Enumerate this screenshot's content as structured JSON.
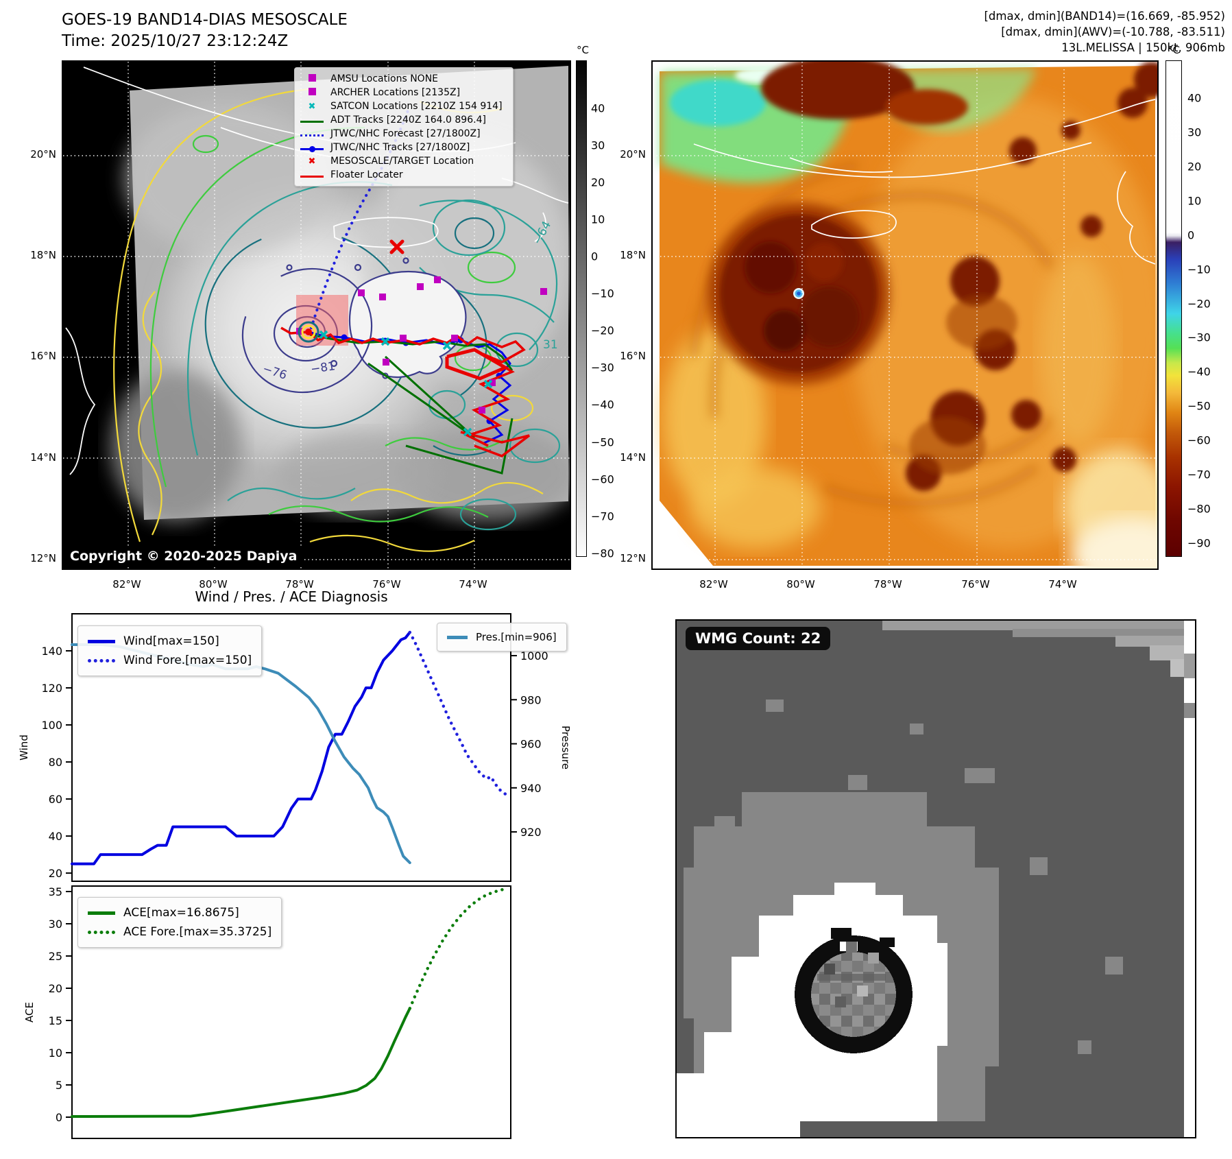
{
  "header": {
    "title": "GOES-19 BAND14-DIAS MESOSCALE",
    "time": "Time: 2025/10/27 23:12:24Z",
    "info1": "[dmax, dmin](BAND14)=(16.669, -85.952)",
    "info2": "[dmax, dmin](AWV)=(-10.788, -83.511)",
    "info3": "13L.MELISSA | 150kt, 906mb"
  },
  "left_map": {
    "copyright": "Copyright © 2020-2025 Dapiya",
    "lat_labels": [
      "20°N",
      "18°N",
      "16°N",
      "14°N",
      "12°N"
    ],
    "lon_labels": [
      "82°W",
      "80°W",
      "78°W",
      "76°W",
      "74°W"
    ],
    "contour_labels": {
      "l1": "−76",
      "l2": "−81",
      "l3": "−64",
      "l4": "31"
    },
    "colorbar": {
      "title": "°C",
      "ticks": [
        40,
        30,
        20,
        10,
        0,
        -10,
        -20,
        -30,
        -40,
        -50,
        -60,
        -70,
        -80
      ]
    },
    "legend": {
      "items": [
        {
          "label": "AMSU Locations NONE",
          "marker": "square",
          "color": "#c000c0"
        },
        {
          "label": "ARCHER Locations [2135Z]",
          "marker": "square",
          "color": "#c000c0"
        },
        {
          "label": "SATCON Locations [2210Z 154 914]",
          "marker": "x",
          "color": "#00b8b8"
        },
        {
          "label": "ADT Tracks [2240Z 164.0 896.4]",
          "marker": "line",
          "color": "#007000"
        },
        {
          "label": "JTWC/NHC Forecast [27/1800Z]",
          "marker": "dotted-line",
          "color": "#2020dd"
        },
        {
          "label": "JTWC/NHC Tracks [27/1800Z]",
          "marker": "line-dot",
          "color": "#0000e8"
        },
        {
          "label": "MESOSCALE/TARGET Location",
          "marker": "x",
          "color": "#e80000"
        },
        {
          "label": "Floater Locater",
          "marker": "line",
          "color": "#e80000"
        }
      ]
    }
  },
  "right_map": {
    "lat_labels": [
      "20°N",
      "18°N",
      "16°N",
      "14°N",
      "12°N"
    ],
    "lon_labels": [
      "82°W",
      "80°W",
      "78°W",
      "76°W",
      "74°W"
    ],
    "colorbar": {
      "title": "°C",
      "ticks": [
        40,
        30,
        20,
        10,
        0,
        -10,
        -20,
        -30,
        -40,
        -50,
        -60,
        -70,
        -80,
        -90
      ]
    }
  },
  "wmg": {
    "label": "WMG Count: 22"
  },
  "colors": {
    "wind_blue": "#0000e0",
    "forecast_blue": "#2020dd",
    "pressure_steelblue": "#3d8cb8",
    "ace_green": "#0b7d0b",
    "track_red": "#e80000",
    "track_green": "#007000",
    "marker_magenta": "#c000c0",
    "marker_cyan": "#00b8b8",
    "target_box_pink": "#f46161"
  },
  "chart_data": [
    {
      "type": "line",
      "title": "Wind / Pres. / ACE Diagnosis",
      "x_units": "normalized 0-1 (time axis, no tick labels shown)",
      "ylabel_left": "Wind",
      "ylabel_right": "Pressure",
      "y_left_ticks": [
        20,
        40,
        60,
        80,
        100,
        120,
        140
      ],
      "y_left_lim": [
        15.6,
        160
      ],
      "y_right_ticks": [
        920,
        940,
        960,
        980,
        1000
      ],
      "y_right_lim": [
        897.6,
        1019
      ],
      "series": [
        {
          "name": "Wind[max=150]",
          "axis": "left",
          "style": "solid",
          "color": "#0000e0",
          "points": [
            [
              0,
              25
            ],
            [
              0.05,
              25
            ],
            [
              0.065,
              30
            ],
            [
              0.16,
              30
            ],
            [
              0.18,
              33
            ],
            [
              0.195,
              35
            ],
            [
              0.215,
              35
            ],
            [
              0.23,
              45
            ],
            [
              0.35,
              45
            ],
            [
              0.365,
              42
            ],
            [
              0.375,
              40
            ],
            [
              0.46,
              40
            ],
            [
              0.48,
              45
            ],
            [
              0.5,
              55
            ],
            [
              0.515,
              60
            ],
            [
              0.545,
              60
            ],
            [
              0.555,
              65
            ],
            [
              0.57,
              75
            ],
            [
              0.585,
              88
            ],
            [
              0.6,
              95
            ],
            [
              0.615,
              95
            ],
            [
              0.63,
              102
            ],
            [
              0.645,
              110
            ],
            [
              0.66,
              115
            ],
            [
              0.67,
              120
            ],
            [
              0.682,
              120
            ],
            [
              0.695,
              128
            ],
            [
              0.71,
              135
            ],
            [
              0.73,
              140
            ],
            [
              0.75,
              146
            ],
            [
              0.76,
              147
            ],
            [
              0.77,
              150
            ]
          ]
        },
        {
          "name": "Wind Fore.[max=150]",
          "axis": "left",
          "style": "dotted",
          "color": "#2020dd",
          "points": [
            [
              0.77,
              150
            ],
            [
              0.785,
              143
            ],
            [
              0.8,
              135
            ],
            [
              0.815,
              127
            ],
            [
              0.83,
              119
            ],
            [
              0.845,
              111
            ],
            [
              0.86,
              103
            ],
            [
              0.875,
              96
            ],
            [
              0.89,
              89
            ],
            [
              0.9,
              84
            ],
            [
              0.915,
              79
            ],
            [
              0.93,
              74
            ],
            [
              0.945,
              71
            ],
            [
              0.955,
              72
            ],
            [
              0.965,
              68
            ],
            [
              0.975,
              65
            ],
            [
              0.985,
              63
            ],
            [
              0.995,
              62
            ]
          ]
        },
        {
          "name": "Pres.[min=906]",
          "axis": "right",
          "style": "solid",
          "color": "#3d8cb8",
          "points": [
            [
              0,
              1005
            ],
            [
              0.07,
              1005
            ],
            [
              0.11,
              1004
            ],
            [
              0.15,
              1002
            ],
            [
              0.19,
              1000
            ],
            [
              0.23,
              998
            ],
            [
              0.27,
              996
            ],
            [
              0.3,
              995
            ],
            [
              0.32,
              996
            ],
            [
              0.35,
              994
            ],
            [
              0.4,
              994
            ],
            [
              0.42,
              995
            ],
            [
              0.44,
              994
            ],
            [
              0.47,
              992
            ],
            [
              0.49,
              989
            ],
            [
              0.51,
              986
            ],
            [
              0.54,
              981
            ],
            [
              0.56,
              976
            ],
            [
              0.58,
              969
            ],
            [
              0.6,
              961
            ],
            [
              0.62,
              954
            ],
            [
              0.64,
              949
            ],
            [
              0.655,
              946
            ],
            [
              0.665,
              943
            ],
            [
              0.675,
              940
            ],
            [
              0.685,
              935
            ],
            [
              0.695,
              931
            ],
            [
              0.71,
              929
            ],
            [
              0.72,
              927
            ],
            [
              0.73,
              922
            ],
            [
              0.745,
              914
            ],
            [
              0.755,
              909
            ],
            [
              0.765,
              907
            ],
            [
              0.77,
              906
            ]
          ]
        }
      ]
    },
    {
      "type": "line",
      "title": "",
      "x_units": "normalized 0-1 (time axis, no tick labels shown)",
      "ylabel_left": "ACE",
      "y_left_ticks": [
        0,
        5,
        10,
        15,
        20,
        25,
        30,
        35
      ],
      "y_left_lim": [
        -3.3,
        35.85
      ],
      "series": [
        {
          "name": "ACE[max=16.8675]",
          "axis": "left",
          "style": "solid",
          "color": "#0b7d0b",
          "points": [
            [
              0,
              0.1
            ],
            [
              0.27,
              0.15
            ],
            [
              0.32,
              0.6
            ],
            [
              0.37,
              1.1
            ],
            [
              0.42,
              1.6
            ],
            [
              0.47,
              2.1
            ],
            [
              0.52,
              2.6
            ],
            [
              0.57,
              3.1
            ],
            [
              0.62,
              3.7
            ],
            [
              0.65,
              4.2
            ],
            [
              0.67,
              4.9
            ],
            [
              0.69,
              6.0
            ],
            [
              0.705,
              7.5
            ],
            [
              0.72,
              9.5
            ],
            [
              0.735,
              11.8
            ],
            [
              0.75,
              14.0
            ],
            [
              0.76,
              15.5
            ],
            [
              0.77,
              16.8675
            ]
          ]
        },
        {
          "name": "ACE Fore.[max=35.3725]",
          "axis": "left",
          "style": "dotted",
          "color": "#0b7d0b",
          "points": [
            [
              0.77,
              16.8675
            ],
            [
              0.78,
              18.5
            ],
            [
              0.795,
              20.8
            ],
            [
              0.81,
              23.0
            ],
            [
              0.825,
              25.0
            ],
            [
              0.845,
              27.4
            ],
            [
              0.865,
              29.5
            ],
            [
              0.885,
              31.2
            ],
            [
              0.905,
              32.6
            ],
            [
              0.925,
              33.7
            ],
            [
              0.945,
              34.5
            ],
            [
              0.965,
              35.0
            ],
            [
              0.985,
              35.3725
            ]
          ]
        }
      ]
    }
  ]
}
